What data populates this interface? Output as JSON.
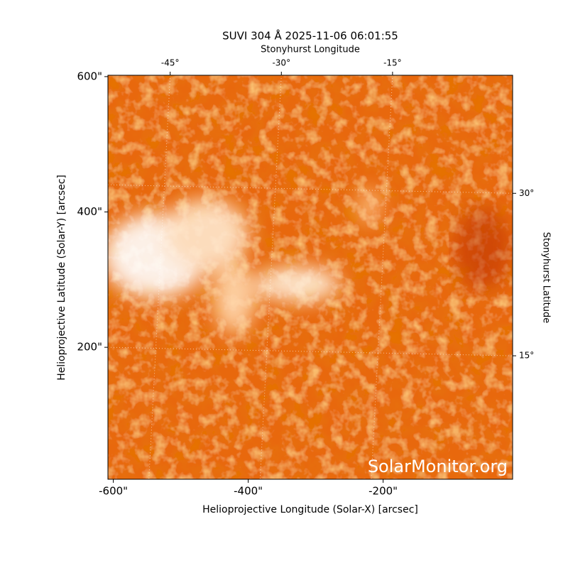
{
  "chart_data": {
    "type": "image",
    "title": "SUVI 304 Å 2025-11-06 06:01:55",
    "xlabel": "Helioprojective Longitude (Solar-X) [arcsec]",
    "ylabel": "Helioprojective Latitude (Solar-Y) [arcsec]",
    "x2label": "Stonyhurst Longitude",
    "y2label": "Stonyhurst Latitude",
    "xlim": [
      -608,
      -8
    ],
    "xticks": [
      {
        "value": -600,
        "label": "-600\""
      },
      {
        "value": -400,
        "label": "-400\""
      },
      {
        "value": -200,
        "label": "-200\""
      }
    ],
    "ylim": [
      5,
      602
    ],
    "yticks": [
      {
        "value": 200,
        "label": "200\""
      },
      {
        "value": 400,
        "label": "400\""
      },
      {
        "value": 600,
        "label": "600\""
      }
    ],
    "x2lim": [
      -53.4,
      1.2
    ],
    "x2ticks": [
      {
        "value": -45,
        "label": "-45°"
      },
      {
        "value": -30,
        "label": "-30°"
      },
      {
        "value": -15,
        "label": "-15°"
      }
    ],
    "y2lim": [
      3.6,
      40.9
    ],
    "y2ticks": [
      {
        "value": 15,
        "label": "15°"
      },
      {
        "value": 30,
        "label": "30°"
      }
    ],
    "grid": true,
    "watermark": "SolarMonitor.org"
  }
}
